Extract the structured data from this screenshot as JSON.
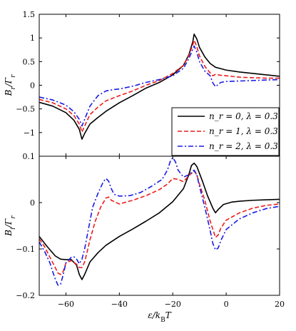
{
  "chart_data": [
    {
      "type": "line",
      "panel": "top",
      "ylabel": "B_r/Γ_r",
      "xlim": [
        -70,
        20
      ],
      "ylim": [
        -1.5,
        1.5
      ],
      "yticks": [
        "1.5",
        "1",
        "0.5",
        "0",
        "−0.5",
        "−1"
      ],
      "legend": {
        "placement": "bottom-right",
        "entries": [
          "n_r = 0, λ = 0.3",
          "n_r = 1, λ = 0.3",
          "n_r = 2, λ = 0.3"
        ]
      },
      "series": [
        {
          "name": "n_r = 0, λ = 0.3",
          "color": "#000000",
          "dash": "solid",
          "x": [
            -70,
            -65,
            -60,
            -57,
            -55,
            -54,
            -53,
            -51,
            -48,
            -45,
            -40,
            -35,
            -30,
            -25,
            -20,
            -16,
            -14,
            -12.5,
            -12,
            -11,
            -10,
            -8,
            -6,
            -4,
            -2,
            0,
            5,
            10,
            15,
            20
          ],
          "y": [
            -0.36,
            -0.44,
            -0.58,
            -0.74,
            -0.93,
            -1.14,
            -1.02,
            -0.82,
            -0.68,
            -0.55,
            -0.37,
            -0.22,
            -0.06,
            0.06,
            0.22,
            0.42,
            0.64,
            0.92,
            1.08,
            0.98,
            0.8,
            0.6,
            0.46,
            0.38,
            0.35,
            0.32,
            0.28,
            0.25,
            0.22,
            0.19
          ]
        },
        {
          "name": "n_r = 1, λ = 0.3",
          "color": "#ee1c1c",
          "dash": "dashed",
          "x": [
            -70,
            -65,
            -60,
            -57,
            -55,
            -54,
            -53,
            -51,
            -48,
            -45,
            -40,
            -35,
            -30,
            -25,
            -20,
            -16,
            -14,
            -12.5,
            -12,
            -11,
            -10,
            -8,
            -6,
            -5,
            -4,
            -2,
            0,
            5,
            10,
            15,
            20
          ],
          "y": [
            -0.3,
            -0.37,
            -0.5,
            -0.64,
            -0.82,
            -0.99,
            -0.86,
            -0.62,
            -0.46,
            -0.33,
            -0.22,
            -0.12,
            0.0,
            0.1,
            0.25,
            0.42,
            0.62,
            0.86,
            0.95,
            0.82,
            0.62,
            0.4,
            0.26,
            0.2,
            0.23,
            0.21,
            0.2,
            0.17,
            0.16,
            0.15,
            0.15
          ]
        },
        {
          "name": "n_r = 2, λ = 0.3",
          "color": "#1a1ae6",
          "dash": "dashdot",
          "x": [
            -70,
            -65,
            -60,
            -57,
            -55,
            -54,
            -53,
            -51,
            -48,
            -45,
            -42,
            -40,
            -35,
            -30,
            -25,
            -20,
            -16,
            -14,
            -12.5,
            -12,
            -11,
            -10,
            -8,
            -6,
            -5,
            -4,
            -2,
            0,
            5,
            10,
            15,
            20
          ],
          "y": [
            -0.25,
            -0.31,
            -0.42,
            -0.56,
            -0.72,
            -0.86,
            -0.72,
            -0.44,
            -0.22,
            -0.12,
            -0.09,
            -0.08,
            -0.02,
            0.06,
            0.12,
            0.2,
            0.36,
            0.56,
            0.76,
            0.83,
            0.7,
            0.5,
            0.3,
            0.2,
            0.05,
            -0.03,
            0.06,
            0.08,
            0.09,
            0.1,
            0.11,
            0.12
          ]
        }
      ]
    },
    {
      "type": "line",
      "panel": "bottom",
      "xlabel": "ε/k_BT",
      "ylabel": "B_i/Γ_r",
      "xlim": [
        -70,
        20
      ],
      "ylim": [
        -0.2,
        0.1
      ],
      "yticks": [
        "0.1",
        "0",
        "−0.1",
        "−0.2"
      ],
      "xticks": [
        "−60",
        "−40",
        "−20",
        "0",
        "20"
      ],
      "series": [
        {
          "name": "n_r = 0, λ = 0.3",
          "color": "#000000",
          "dash": "solid",
          "x": [
            -70,
            -67,
            -64,
            -62,
            -60,
            -58,
            -56,
            -55,
            -54,
            -53,
            -51,
            -48,
            -45,
            -40,
            -35,
            -30,
            -25,
            -20,
            -16,
            -14,
            -13,
            -12,
            -11,
            -9,
            -7,
            -5,
            -4,
            -3,
            -1,
            2,
            5,
            10,
            15,
            20
          ],
          "y": [
            -0.073,
            -0.095,
            -0.115,
            -0.122,
            -0.123,
            -0.123,
            -0.135,
            -0.155,
            -0.166,
            -0.155,
            -0.128,
            -0.108,
            -0.092,
            -0.073,
            -0.057,
            -0.04,
            -0.022,
            0.002,
            0.03,
            0.06,
            0.08,
            0.085,
            0.078,
            0.048,
            0.015,
            -0.012,
            -0.022,
            -0.015,
            -0.004,
            0.001,
            0.003,
            0.005,
            0.006,
            0.007
          ]
        },
        {
          "name": "n_r = 1, λ = 0.3",
          "color": "#ee1c1c",
          "dash": "dashed",
          "x": [
            -70,
            -68,
            -66,
            -64,
            -63,
            -62,
            -61,
            -60,
            -58,
            -56,
            -55,
            -54,
            -53,
            -52,
            -51,
            -49,
            -47,
            -45,
            -44,
            -43,
            -40,
            -35,
            -30,
            -25,
            -22,
            -20,
            -18,
            -16,
            -14,
            -12,
            -11,
            -10,
            -8,
            -6,
            -4,
            -3,
            -2,
            0,
            5,
            10,
            15,
            20
          ],
          "y": [
            -0.078,
            -0.095,
            -0.118,
            -0.14,
            -0.152,
            -0.155,
            -0.148,
            -0.13,
            -0.125,
            -0.133,
            -0.14,
            -0.14,
            -0.128,
            -0.105,
            -0.08,
            -0.04,
            -0.01,
            0.01,
            0.012,
            0.005,
            -0.003,
            0.005,
            0.015,
            0.028,
            0.04,
            0.052,
            0.05,
            0.045,
            0.058,
            0.068,
            0.06,
            0.04,
            0.005,
            -0.04,
            -0.075,
            -0.07,
            -0.055,
            -0.038,
            -0.022,
            -0.012,
            -0.006,
            -0.003
          ]
        },
        {
          "name": "n_r = 2, λ = 0.3",
          "color": "#1a1ae6",
          "dash": "dashdot",
          "x": [
            -70,
            -68,
            -66,
            -65,
            -64,
            -63,
            -62,
            -61,
            -60,
            -58,
            -57,
            -56,
            -55,
            -54,
            -53,
            -52,
            -51,
            -50,
            -48,
            -46,
            -45,
            -44,
            -43,
            -42,
            -40,
            -36,
            -32,
            -28,
            -24,
            -22,
            -21,
            -20,
            -19,
            -18,
            -16,
            -14,
            -12,
            -11,
            -10,
            -8,
            -6,
            -5,
            -4,
            -3,
            -2,
            0,
            5,
            10,
            15,
            20
          ],
          "y": [
            -0.085,
            -0.105,
            -0.13,
            -0.148,
            -0.165,
            -0.178,
            -0.176,
            -0.155,
            -0.13,
            -0.118,
            -0.117,
            -0.122,
            -0.132,
            -0.122,
            -0.1,
            -0.07,
            -0.04,
            -0.01,
            0.02,
            0.045,
            0.052,
            0.046,
            0.03,
            0.018,
            0.014,
            0.015,
            0.022,
            0.035,
            0.05,
            0.07,
            0.088,
            0.097,
            0.088,
            0.07,
            0.055,
            0.06,
            0.07,
            0.06,
            0.035,
            -0.01,
            -0.06,
            -0.088,
            -0.102,
            -0.098,
            -0.082,
            -0.058,
            -0.035,
            -0.022,
            -0.013,
            -0.008
          ]
        }
      ]
    }
  ]
}
